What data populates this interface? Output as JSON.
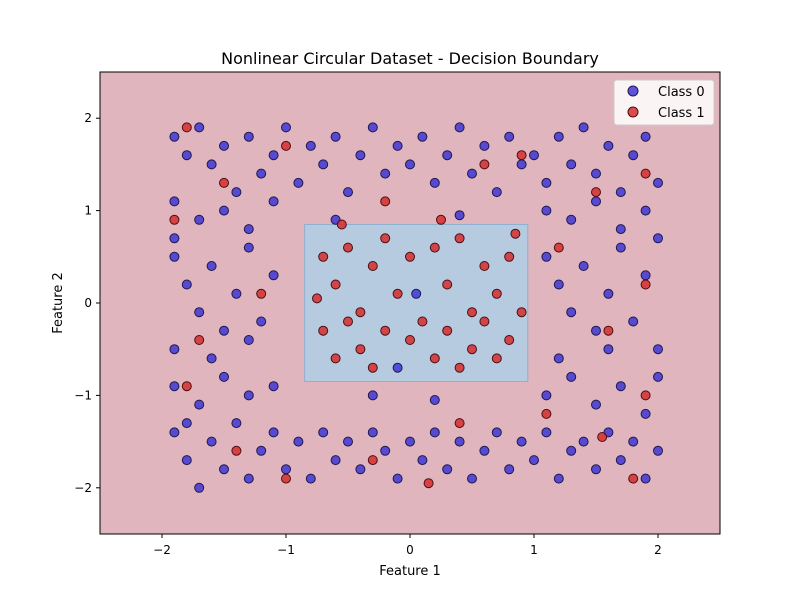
{
  "chart_data": {
    "type": "scatter",
    "title": "Nonlinear Circular Dataset - Decision Boundary",
    "xlabel": "Feature 1",
    "ylabel": "Feature 2",
    "xlim": [
      -2.5,
      2.5
    ],
    "ylim": [
      -2.5,
      2.5
    ],
    "xticks": [
      -2,
      -1,
      0,
      1,
      2
    ],
    "yticks": [
      -2,
      -1,
      0,
      1,
      2
    ],
    "xtick_labels": [
      "−2",
      "−1",
      "0",
      "1",
      "2"
    ],
    "ytick_labels": [
      "−2",
      "−1",
      "0",
      "1",
      "2"
    ],
    "grid": false,
    "legend_position": "top-right",
    "background": {
      "class0_region_color": "#e1b5bd",
      "class1_region_color": "#b6cbe0",
      "class1_region": [
        [
          -0.85,
          0.85
        ],
        [
          -0.85,
          -0.85
        ],
        [
          0.95,
          -0.85
        ],
        [
          0.95,
          0.85
        ]
      ]
    },
    "series": [
      {
        "name": "Class 0",
        "color": "#3a31d6",
        "edge": "#1a1a4e",
        "points": [
          [
            -1.9,
            1.8
          ],
          [
            -1.8,
            1.6
          ],
          [
            -1.7,
            1.9
          ],
          [
            -1.6,
            1.5
          ],
          [
            -1.5,
            1.7
          ],
          [
            -1.4,
            1.2
          ],
          [
            -1.3,
            1.8
          ],
          [
            -1.2,
            1.4
          ],
          [
            -1.1,
            1.6
          ],
          [
            -1.0,
            1.9
          ],
          [
            -0.9,
            1.3
          ],
          [
            -0.8,
            1.7
          ],
          [
            -0.7,
            1.5
          ],
          [
            -0.6,
            1.8
          ],
          [
            -0.5,
            1.2
          ],
          [
            -0.4,
            1.6
          ],
          [
            -0.3,
            1.9
          ],
          [
            -0.2,
            1.4
          ],
          [
            -0.1,
            1.7
          ],
          [
            0.0,
            1.5
          ],
          [
            0.1,
            1.8
          ],
          [
            0.2,
            1.3
          ],
          [
            0.3,
            1.6
          ],
          [
            0.4,
            1.9
          ],
          [
            0.5,
            1.4
          ],
          [
            0.6,
            1.7
          ],
          [
            0.7,
            1.2
          ],
          [
            0.8,
            1.8
          ],
          [
            0.9,
            1.5
          ],
          [
            1.0,
            1.6
          ],
          [
            1.1,
            1.3
          ],
          [
            1.2,
            1.8
          ],
          [
            1.3,
            1.5
          ],
          [
            1.4,
            1.9
          ],
          [
            1.5,
            1.4
          ],
          [
            1.6,
            1.7
          ],
          [
            1.7,
            1.2
          ],
          [
            1.8,
            1.6
          ],
          [
            1.9,
            1.8
          ],
          [
            2.0,
            1.3
          ],
          [
            -1.9,
            1.1
          ],
          [
            -1.7,
            0.9
          ],
          [
            -1.5,
            1.0
          ],
          [
            -1.3,
            0.8
          ],
          [
            -1.1,
            1.1
          ],
          [
            -1.9,
            0.7
          ],
          [
            1.1,
            1.0
          ],
          [
            1.3,
            0.9
          ],
          [
            1.5,
            1.1
          ],
          [
            1.7,
            0.8
          ],
          [
            1.9,
            1.0
          ],
          [
            2.0,
            0.7
          ],
          [
            -1.9,
            0.5
          ],
          [
            -1.8,
            0.2
          ],
          [
            -1.7,
            -0.1
          ],
          [
            -1.6,
            0.4
          ],
          [
            -1.5,
            -0.3
          ],
          [
            -1.4,
            0.1
          ],
          [
            -1.3,
            0.6
          ],
          [
            -1.2,
            -0.2
          ],
          [
            -1.1,
            0.3
          ],
          [
            -1.9,
            -0.5
          ],
          [
            -1.6,
            -0.6
          ],
          [
            -1.3,
            -0.4
          ],
          [
            1.1,
            0.5
          ],
          [
            1.2,
            0.2
          ],
          [
            1.3,
            -0.1
          ],
          [
            1.4,
            0.4
          ],
          [
            1.5,
            -0.3
          ],
          [
            1.6,
            0.1
          ],
          [
            1.7,
            0.6
          ],
          [
            1.8,
            -0.2
          ],
          [
            1.9,
            0.3
          ],
          [
            2.0,
            -0.5
          ],
          [
            1.2,
            -0.6
          ],
          [
            1.6,
            -0.5
          ],
          [
            -1.9,
            -0.9
          ],
          [
            -1.7,
            -1.1
          ],
          [
            -1.5,
            -0.8
          ],
          [
            -1.3,
            -1.0
          ],
          [
            -1.1,
            -0.9
          ],
          [
            -1.8,
            -1.3
          ],
          [
            1.1,
            -1.0
          ],
          [
            1.3,
            -0.8
          ],
          [
            1.5,
            -1.1
          ],
          [
            1.7,
            -0.9
          ],
          [
            1.9,
            -1.2
          ],
          [
            2.0,
            -0.8
          ],
          [
            -1.9,
            -1.4
          ],
          [
            -1.8,
            -1.7
          ],
          [
            -1.7,
            -2.0
          ],
          [
            -1.6,
            -1.5
          ],
          [
            -1.5,
            -1.8
          ],
          [
            -1.4,
            -1.3
          ],
          [
            -1.3,
            -1.9
          ],
          [
            -1.2,
            -1.6
          ],
          [
            -1.1,
            -1.4
          ],
          [
            -1.0,
            -1.8
          ],
          [
            -0.9,
            -1.5
          ],
          [
            -0.8,
            -1.9
          ],
          [
            -0.7,
            -1.4
          ],
          [
            -0.6,
            -1.7
          ],
          [
            -0.5,
            -1.5
          ],
          [
            -0.4,
            -1.8
          ],
          [
            -0.3,
            -1.4
          ],
          [
            -0.2,
            -1.6
          ],
          [
            -0.1,
            -1.9
          ],
          [
            0.0,
            -1.5
          ],
          [
            0.1,
            -1.7
          ],
          [
            0.2,
            -1.4
          ],
          [
            0.3,
            -1.8
          ],
          [
            0.4,
            -1.5
          ],
          [
            0.5,
            -1.9
          ],
          [
            0.6,
            -1.6
          ],
          [
            0.7,
            -1.4
          ],
          [
            0.8,
            -1.8
          ],
          [
            0.9,
            -1.5
          ],
          [
            1.0,
            -1.7
          ],
          [
            1.1,
            -1.4
          ],
          [
            1.2,
            -1.9
          ],
          [
            1.3,
            -1.6
          ],
          [
            1.4,
            -1.5
          ],
          [
            1.5,
            -1.8
          ],
          [
            1.6,
            -1.4
          ],
          [
            1.7,
            -1.7
          ],
          [
            1.8,
            -1.5
          ],
          [
            1.9,
            -1.9
          ],
          [
            2.0,
            -1.6
          ],
          [
            -0.6,
            0.9
          ],
          [
            0.4,
            0.95
          ],
          [
            -0.3,
            -1.0
          ],
          [
            0.2,
            -1.05
          ],
          [
            0.05,
            0.1
          ],
          [
            -0.1,
            -0.7
          ]
        ]
      },
      {
        "name": "Class 1",
        "color": "#d62728",
        "edge": "#4a1010",
        "points": [
          [
            -0.7,
            0.5
          ],
          [
            -0.6,
            0.2
          ],
          [
            -0.5,
            0.6
          ],
          [
            -0.4,
            -0.1
          ],
          [
            -0.3,
            0.4
          ],
          [
            -0.2,
            0.7
          ],
          [
            -0.1,
            0.1
          ],
          [
            0.0,
            0.5
          ],
          [
            0.1,
            -0.2
          ],
          [
            0.2,
            0.6
          ],
          [
            0.3,
            0.2
          ],
          [
            0.4,
            0.7
          ],
          [
            0.5,
            -0.1
          ],
          [
            0.6,
            0.4
          ],
          [
            0.7,
            0.1
          ],
          [
            0.8,
            0.5
          ],
          [
            -0.7,
            -0.3
          ],
          [
            -0.6,
            -0.6
          ],
          [
            -0.5,
            -0.2
          ],
          [
            -0.4,
            -0.5
          ],
          [
            -0.3,
            -0.7
          ],
          [
            -0.2,
            -0.3
          ],
          [
            0.0,
            -0.4
          ],
          [
            0.2,
            -0.6
          ],
          [
            0.3,
            -0.3
          ],
          [
            0.4,
            -0.7
          ],
          [
            0.5,
            -0.5
          ],
          [
            0.6,
            -0.2
          ],
          [
            0.7,
            -0.6
          ],
          [
            0.8,
            -0.4
          ],
          [
            -0.55,
            0.85
          ],
          [
            0.25,
            0.9
          ],
          [
            0.85,
            0.75
          ],
          [
            -0.75,
            0.05
          ],
          [
            0.9,
            -0.1
          ],
          [
            -1.8,
            1.9
          ],
          [
            -1.5,
            1.3
          ],
          [
            -1.0,
            1.7
          ],
          [
            -0.2,
            1.1
          ],
          [
            0.6,
            1.5
          ],
          [
            0.9,
            1.6
          ],
          [
            1.5,
            1.2
          ],
          [
            1.9,
            1.4
          ],
          [
            -1.9,
            0.9
          ],
          [
            1.2,
            0.6
          ],
          [
            1.9,
            0.2
          ],
          [
            -1.7,
            -0.4
          ],
          [
            -1.2,
            0.1
          ],
          [
            1.6,
            -0.3
          ],
          [
            -1.8,
            -0.9
          ],
          [
            1.9,
            -1.0
          ],
          [
            -1.4,
            -1.6
          ],
          [
            -0.3,
            -1.7
          ],
          [
            0.4,
            -1.3
          ],
          [
            1.1,
            -1.2
          ],
          [
            1.8,
            -1.9
          ],
          [
            -1.0,
            -1.9
          ],
          [
            0.15,
            -1.95
          ],
          [
            1.55,
            -1.45
          ]
        ]
      }
    ]
  }
}
